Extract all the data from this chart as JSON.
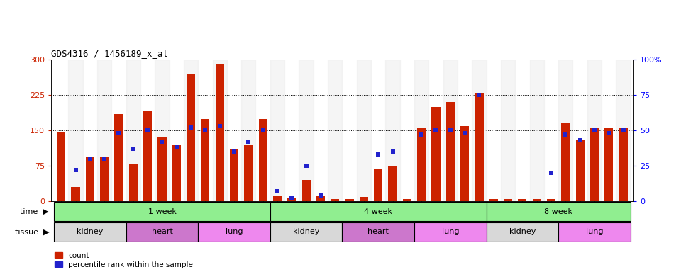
{
  "title": "GDS4316 / 1456189_x_at",
  "samples": [
    "GSM949115",
    "GSM949116",
    "GSM949117",
    "GSM949118",
    "GSM949119",
    "GSM949120",
    "GSM949121",
    "GSM949122",
    "GSM949123",
    "GSM949124",
    "GSM949125",
    "GSM949126",
    "GSM949127",
    "GSM949128",
    "GSM949129",
    "GSM949130",
    "GSM949131",
    "GSM949132",
    "GSM949133",
    "GSM949134",
    "GSM949135",
    "GSM949136",
    "GSM949137",
    "GSM949138",
    "GSM949139",
    "GSM949140",
    "GSM949141",
    "GSM949142",
    "GSM949143",
    "GSM949144",
    "GSM949145",
    "GSM949146",
    "GSM949147",
    "GSM949148",
    "GSM949149",
    "GSM949150",
    "GSM949151",
    "GSM949152",
    "GSM949153",
    "GSM949154"
  ],
  "counts": [
    148,
    30,
    95,
    95,
    185,
    80,
    192,
    135,
    120,
    270,
    175,
    290,
    110,
    120,
    175,
    12,
    8,
    45,
    12,
    5,
    5,
    10,
    70,
    75,
    5,
    155,
    200,
    210,
    160,
    230,
    5,
    5,
    5,
    5,
    5,
    165,
    130,
    155,
    155,
    155
  ],
  "percentiles": [
    null,
    22,
    30,
    30,
    48,
    37,
    50,
    42,
    38,
    52,
    50,
    53,
    35,
    42,
    50,
    7,
    2,
    25,
    4,
    null,
    null,
    null,
    33,
    35,
    null,
    47,
    50,
    50,
    48,
    75,
    null,
    null,
    null,
    null,
    20,
    47,
    43,
    50,
    48,
    50
  ],
  "time_groups": [
    {
      "label": "1 week",
      "start": 0,
      "end": 15
    },
    {
      "label": "4 week",
      "start": 15,
      "end": 30
    },
    {
      "label": "8 week",
      "start": 30,
      "end": 40
    }
  ],
  "tissue_groups": [
    {
      "label": "kidney",
      "start": 0,
      "end": 5,
      "color": "#D8D8D8"
    },
    {
      "label": "heart",
      "start": 5,
      "end": 10,
      "color": "#CC77CC"
    },
    {
      "label": "lung",
      "start": 10,
      "end": 15,
      "color": "#EE88EE"
    },
    {
      "label": "kidney",
      "start": 15,
      "end": 20,
      "color": "#D8D8D8"
    },
    {
      "label": "heart",
      "start": 20,
      "end": 25,
      "color": "#CC77CC"
    },
    {
      "label": "lung",
      "start": 25,
      "end": 30,
      "color": "#EE88EE"
    },
    {
      "label": "kidney",
      "start": 30,
      "end": 35,
      "color": "#D8D8D8"
    },
    {
      "label": "lung",
      "start": 35,
      "end": 40,
      "color": "#EE88EE"
    }
  ],
  "bar_color": "#CC2200",
  "dot_color": "#2222CC",
  "ylim_left": [
    0,
    300
  ],
  "ylim_right": [
    0,
    100
  ],
  "yticks_left": [
    0,
    75,
    150,
    225,
    300
  ],
  "yticks_right": [
    0,
    25,
    50,
    75,
    100
  ],
  "time_color": "#90EE90",
  "xbg_color": "#E8E8E8"
}
